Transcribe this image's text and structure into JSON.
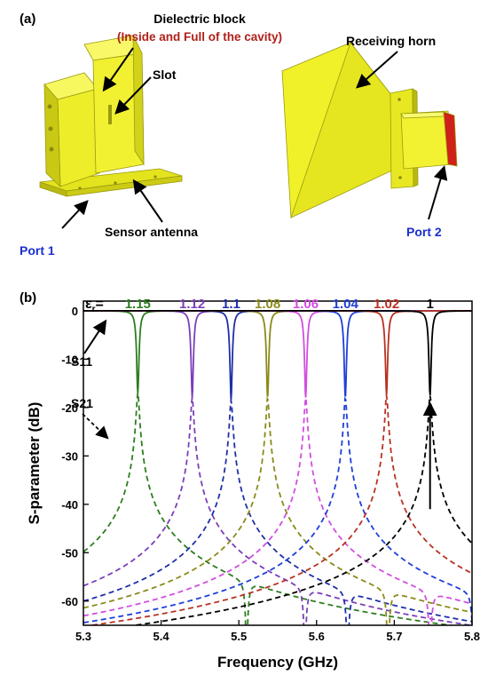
{
  "panel_a": {
    "label": "(a)",
    "callouts": {
      "dielectric": "Dielectric block",
      "inside": "(Inside and Full of the cavity)",
      "slot": "Slot",
      "sensor": "Sensor antenna",
      "port1": "Port 1",
      "horn": "Receiving horn",
      "port2": "Port 2"
    }
  },
  "panel_b": {
    "label": "(b)",
    "eps_symbol": "ε",
    "eps_sub": "r",
    "s11_label": "S11",
    "s21_label": "S21"
  },
  "colors": {
    "c1.15": "#2e7d1f",
    "c1.12": "#7b3fb8",
    "c1.1": "#1f2fa8",
    "c1.08": "#8a8a1a",
    "c1.06": "#d24de0",
    "c1.04": "#1f3fd8",
    "c1.02": "#b83222",
    "c1": "#000000",
    "model": "#f1f12a",
    "red_face": "#d0201a",
    "callout_red": "#b0201a",
    "port_blue": "#1a2fd0"
  },
  "chart_data": {
    "type": "line",
    "xlabel": "Frequency (GHz)",
    "ylabel": "S-parameter (dB)",
    "xlim": [
      5.3,
      5.8
    ],
    "ylim": [
      -65,
      2
    ],
    "xticks": [
      5.3,
      5.4,
      5.5,
      5.6,
      5.7,
      5.8
    ],
    "yticks": [
      0,
      -10,
      -20,
      -30,
      -40,
      -50,
      -60
    ],
    "grid": false,
    "series": [
      {
        "name": "1.15",
        "color": "#2e7d1f",
        "f0": 5.37,
        "s11_min": -17,
        "s21_peak": -17
      },
      {
        "name": "1.12",
        "color": "#7b3fb8",
        "f0": 5.44,
        "s11_min": -18,
        "s21_peak": -18
      },
      {
        "name": "1.1",
        "color": "#1f2fa8",
        "f0": 5.49,
        "s11_min": -18.5,
        "s21_peak": -18.5
      },
      {
        "name": "1.08",
        "color": "#8a8a1a",
        "f0": 5.537,
        "s11_min": -18,
        "s21_peak": -18
      },
      {
        "name": "1.06",
        "color": "#d24de0",
        "f0": 5.586,
        "s11_min": -18,
        "s21_peak": -18
      },
      {
        "name": "1.04",
        "color": "#1f3fd8",
        "f0": 5.637,
        "s11_min": -18,
        "s21_peak": -18
      },
      {
        "name": "1.02",
        "color": "#b83222",
        "f0": 5.69,
        "s11_min": -17.5,
        "s21_peak": -17.5
      },
      {
        "name": "1",
        "color": "#000000",
        "f0": 5.746,
        "s11_min": -17.5,
        "s21_peak": -17.5
      }
    ]
  }
}
